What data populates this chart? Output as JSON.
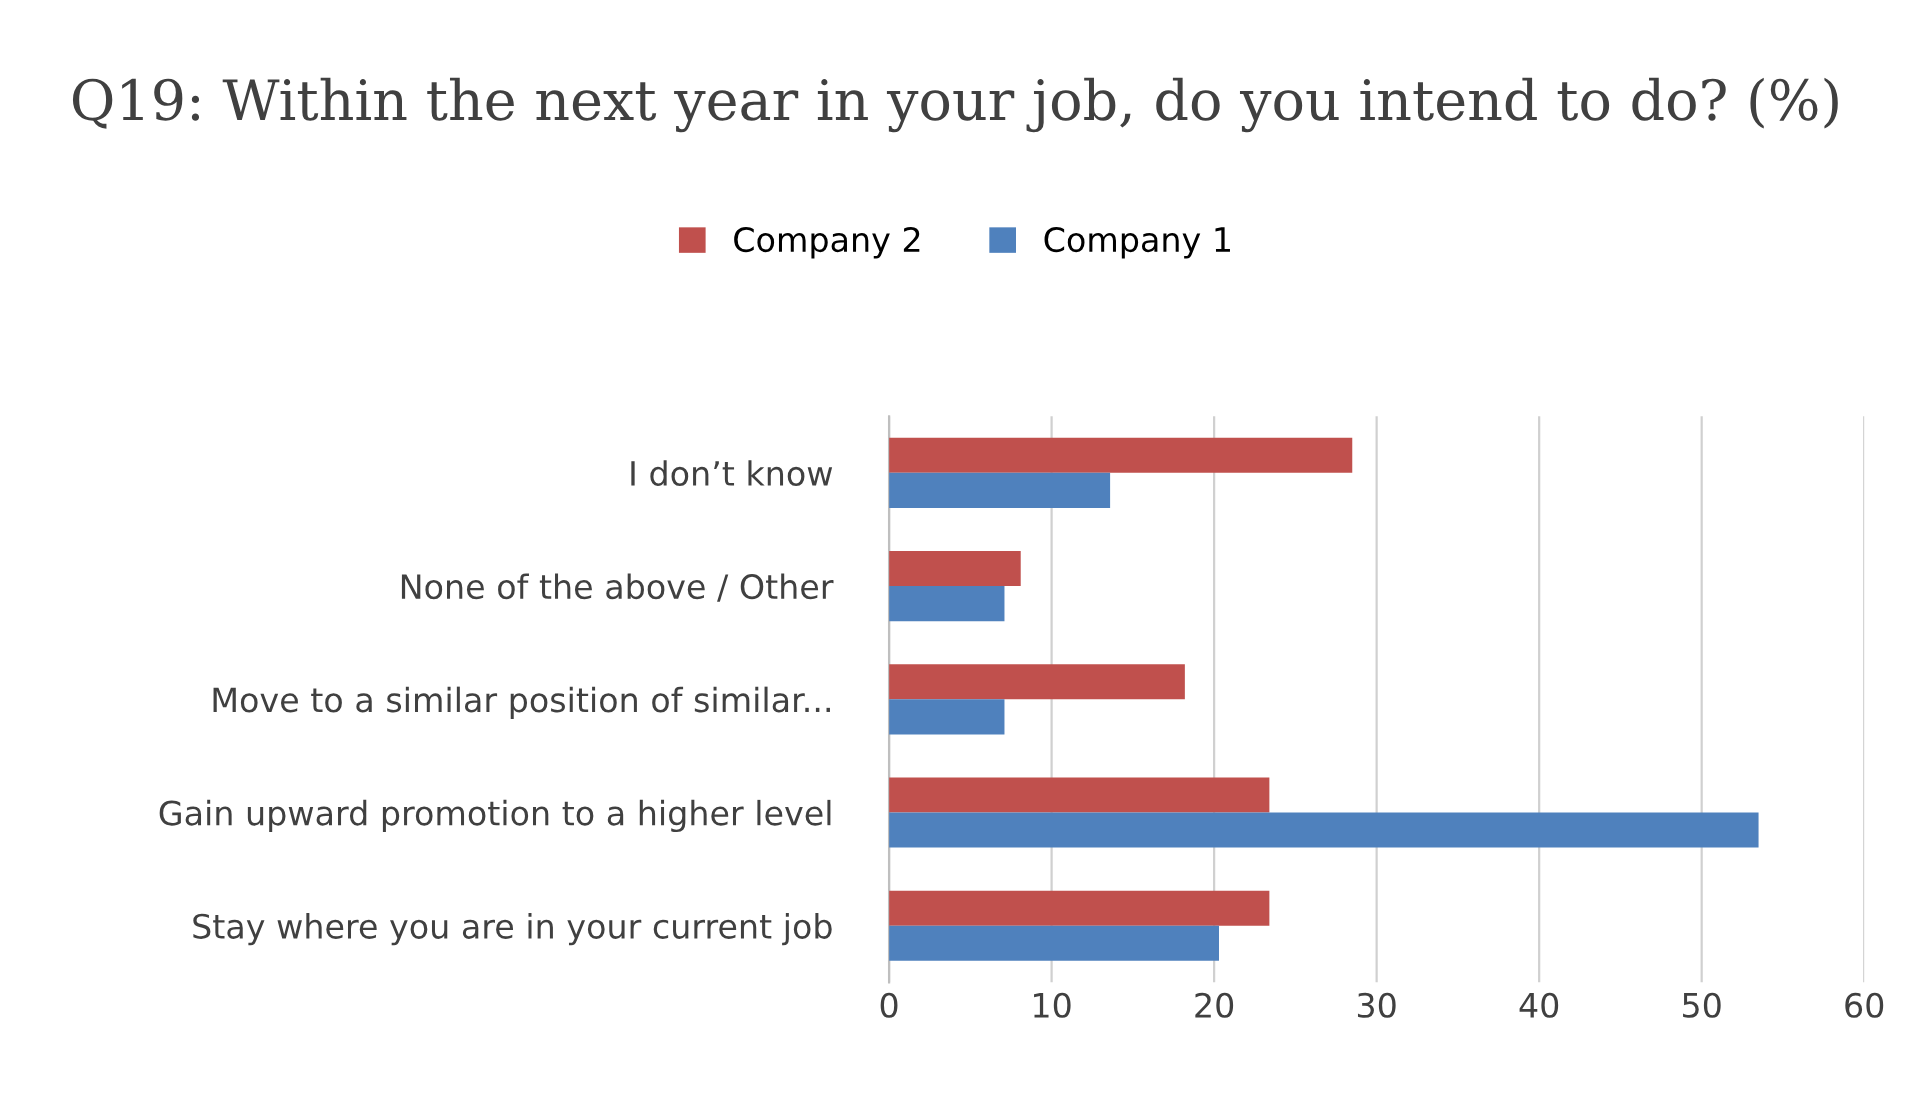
{
  "chart_data": {
    "type": "bar",
    "orientation": "horizontal",
    "title": "Q19: Within the next year in your job, do you intend to do? (%)",
    "categories": [
      "I don’t know",
      "None of the above / Other",
      "Move to a similar position of similar...",
      "Gain upward promotion to a higher level",
      "Stay where you are in your current job"
    ],
    "series": [
      {
        "name": "Company 2",
        "color": "#c0504d",
        "values": [
          28.5,
          8.1,
          18.2,
          23.4,
          23.4
        ]
      },
      {
        "name": "Company 1",
        "color": "#4f81bd",
        "values": [
          13.6,
          7.1,
          7.1,
          53.5,
          20.3
        ]
      }
    ],
    "xlim": [
      0,
      60
    ],
    "xticks": [
      0,
      10,
      20,
      30,
      40,
      50,
      60
    ],
    "grid": "x",
    "legend": "top"
  }
}
